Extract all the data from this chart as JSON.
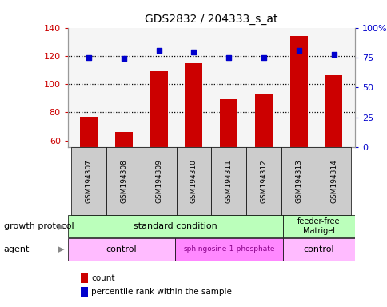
{
  "title": "GDS2832 / 204333_s_at",
  "samples": [
    "GSM194307",
    "GSM194308",
    "GSM194309",
    "GSM194310",
    "GSM194311",
    "GSM194312",
    "GSM194313",
    "GSM194314"
  ],
  "counts": [
    77,
    66,
    109,
    115,
    89,
    93,
    134,
    106
  ],
  "percentile_ranks": [
    75,
    74,
    81,
    80,
    75,
    75,
    81,
    78
  ],
  "ylim_left": [
    55,
    140
  ],
  "ylim_right": [
    0,
    100
  ],
  "yticks_left": [
    60,
    80,
    100,
    120,
    140
  ],
  "yticks_right": [
    0,
    25,
    50,
    75,
    100
  ],
  "bar_color": "#cc0000",
  "dot_color": "#0000cc",
  "sample_box_color": "#cccccc",
  "gp_color": "#bbffbb",
  "agent_control_color": "#ffbbff",
  "agent_sphingo_color": "#ff88ff",
  "sphingo_text_color": "#880088",
  "axis_left_color": "#cc0000",
  "axis_right_color": "#0000cc",
  "dotted_line_vals": [
    80,
    100,
    120
  ],
  "legend_items": [
    {
      "label": "count",
      "color": "#cc0000"
    },
    {
      "label": "percentile rank within the sample",
      "color": "#0000cc"
    }
  ]
}
